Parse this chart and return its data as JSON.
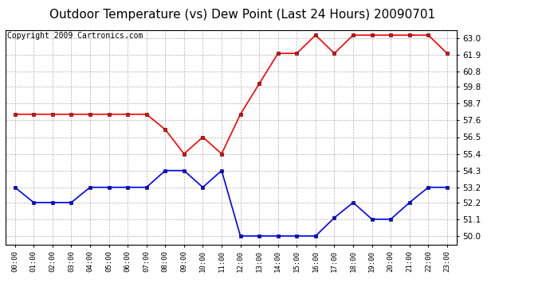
{
  "title": "Outdoor Temperature (vs) Dew Point (Last 24 Hours) 20090701",
  "copyright": "Copyright 2009 Cartronics.com",
  "hours": [
    "00:00",
    "01:00",
    "02:00",
    "03:00",
    "04:00",
    "05:00",
    "06:00",
    "07:00",
    "08:00",
    "09:00",
    "10:00",
    "11:00",
    "12:00",
    "13:00",
    "14:00",
    "15:00",
    "16:00",
    "17:00",
    "18:00",
    "19:00",
    "20:00",
    "21:00",
    "22:00",
    "23:00"
  ],
  "temp": [
    58.0,
    58.0,
    58.0,
    58.0,
    58.0,
    58.0,
    58.0,
    58.0,
    57.0,
    55.4,
    56.5,
    55.4,
    58.0,
    60.0,
    62.0,
    62.0,
    63.2,
    62.0,
    63.2,
    63.2,
    63.2,
    63.2,
    63.2,
    62.0
  ],
  "dew": [
    53.2,
    52.2,
    52.2,
    52.2,
    53.2,
    53.2,
    53.2,
    53.2,
    54.3,
    54.3,
    53.2,
    54.3,
    50.0,
    50.0,
    50.0,
    50.0,
    50.0,
    51.2,
    52.2,
    51.1,
    51.1,
    52.2,
    53.2,
    53.2
  ],
  "temp_color": "#ff0000",
  "dew_color": "#0000ff",
  "background_color": "#ffffff",
  "plot_bg_color": "#ffffff",
  "grid_color": "#b0b0b0",
  "ylim_min": 49.45,
  "ylim_max": 63.55,
  "yticks": [
    50.0,
    51.1,
    52.2,
    53.2,
    54.3,
    55.4,
    56.5,
    57.6,
    58.7,
    59.8,
    60.8,
    61.9,
    63.0
  ],
  "title_fontsize": 11,
  "copyright_fontsize": 7,
  "marker": "s",
  "markersize": 3,
  "linewidth": 1.2
}
